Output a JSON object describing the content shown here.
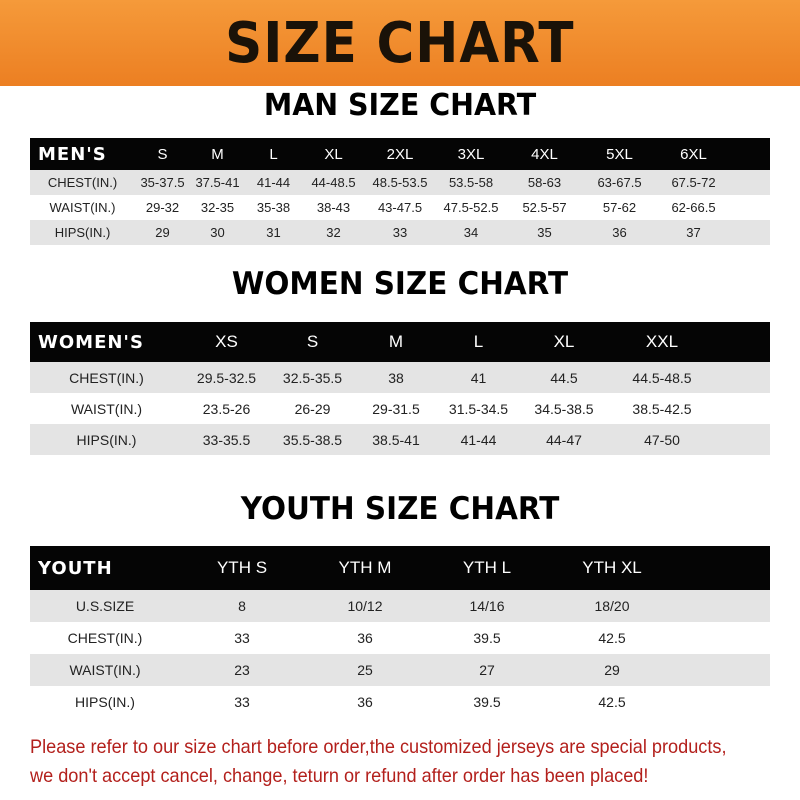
{
  "banner": {
    "title": "SIZE CHART",
    "color": "#f08a2a"
  },
  "men": {
    "title": "MAN SIZE CHART",
    "header": [
      "MEN'S",
      "S",
      "M",
      "L",
      "XL",
      "2XL",
      "3XL",
      "4XL",
      "5XL",
      "6XL"
    ],
    "rows": [
      [
        "CHEST(IN.)",
        "35-37.5",
        "37.5-41",
        "41-44",
        "44-48.5",
        "48.5-53.5",
        "53.5-58",
        "58-63",
        "63-67.5",
        "67.5-72"
      ],
      [
        "WAIST(IN.)",
        "29-32",
        "32-35",
        "35-38",
        "38-43",
        "43-47.5",
        "47.5-52.5",
        "52.5-57",
        "57-62",
        "62-66.5"
      ],
      [
        "HIPS(IN.)",
        "29",
        "30",
        "31",
        "32",
        "33",
        "34",
        "35",
        "36",
        "37"
      ]
    ]
  },
  "women": {
    "title": "WOMEN SIZE CHART",
    "header": [
      "WOMEN'S",
      "XS",
      "S",
      "M",
      "L",
      "XL",
      "XXL"
    ],
    "rows": [
      [
        "CHEST(IN.)",
        "29.5-32.5",
        "32.5-35.5",
        "38",
        "41",
        "44.5",
        "44.5-48.5"
      ],
      [
        "WAIST(IN.)",
        "23.5-26",
        "26-29",
        "29-31.5",
        "31.5-34.5",
        "34.5-38.5",
        "38.5-42.5"
      ],
      [
        "HIPS(IN.)",
        "33-35.5",
        "35.5-38.5",
        "38.5-41",
        "41-44",
        "44-47",
        "47-50"
      ]
    ]
  },
  "youth": {
    "title": "YOUTH SIZE CHART",
    "header": [
      "YOUTH",
      "YTH S",
      "YTH M",
      "YTH L",
      "YTH XL"
    ],
    "rows": [
      [
        "U.S.SIZE",
        "8",
        "10/12",
        "14/16",
        "18/20"
      ],
      [
        "CHEST(IN.)",
        "33",
        "36",
        "39.5",
        "42.5"
      ],
      [
        "WAIST(IN.)",
        "23",
        "25",
        "27",
        "29"
      ],
      [
        "HIPS(IN.)",
        "33",
        "36",
        "39.5",
        "42.5"
      ]
    ]
  },
  "note": {
    "line1": "Please refer to our size chart before order,the customized jerseys are special products,",
    "line2": "we don't accept cancel, change, teturn or refund after order has been placed!",
    "color": "#b3201c"
  }
}
